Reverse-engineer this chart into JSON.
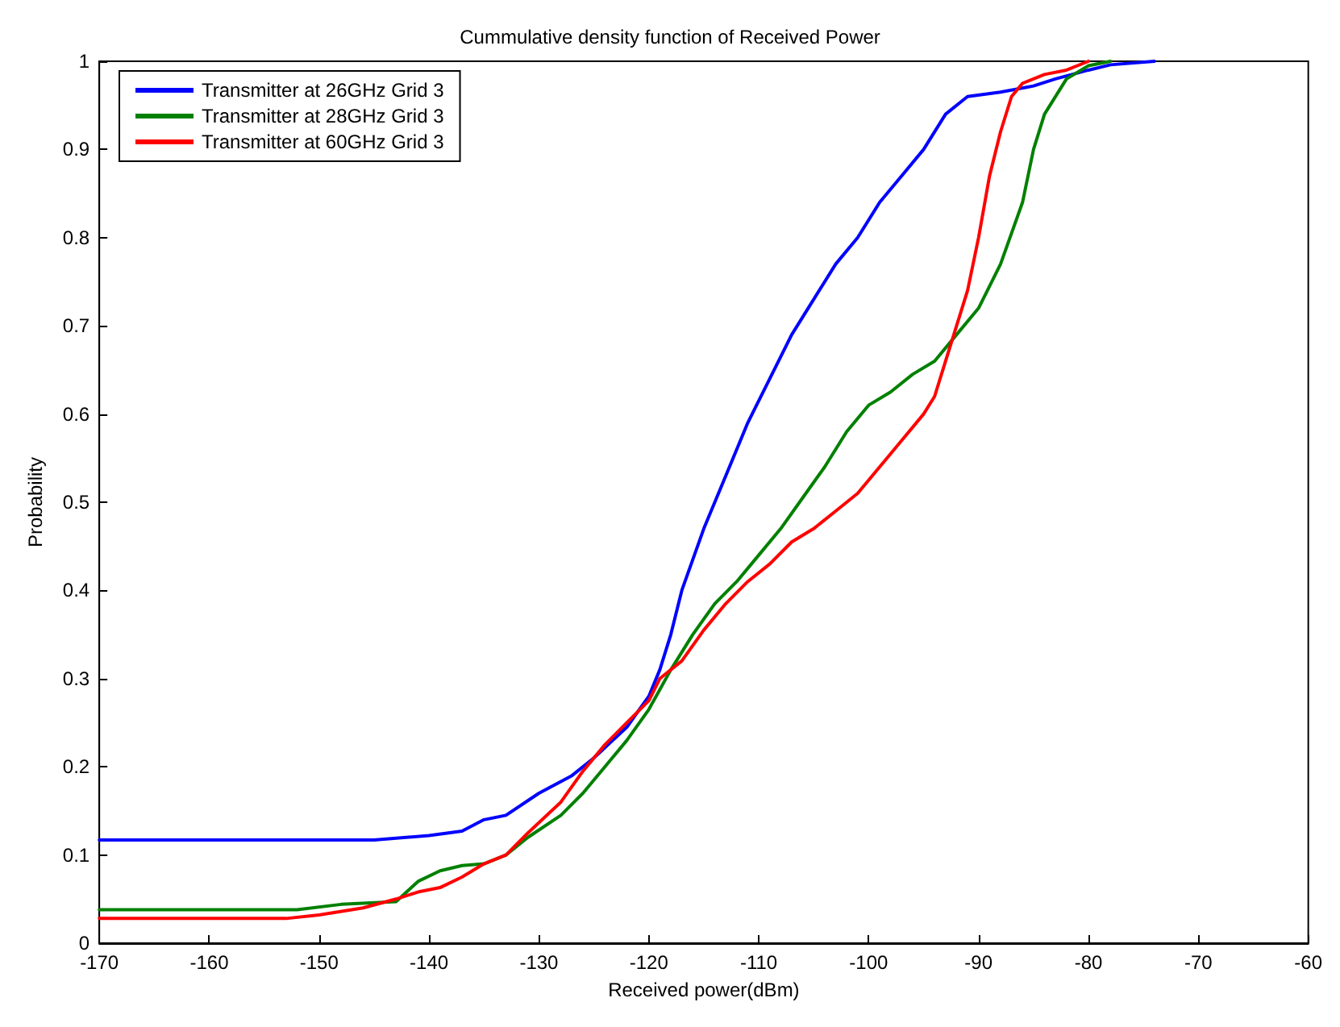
{
  "chart_data": {
    "type": "line",
    "title": "Cummulative density function of Received Power",
    "xlabel": "Received power(dBm)",
    "ylabel": "Probability",
    "xlim": [
      -170,
      -60
    ],
    "xticks": [
      -170,
      -160,
      -150,
      -140,
      -130,
      -120,
      -110,
      -100,
      -90,
      -80,
      -70,
      -60
    ],
    "ylim": [
      0,
      1
    ],
    "yticks": [
      0,
      0.1,
      0.2,
      0.3,
      0.4,
      0.5,
      0.6,
      0.7,
      0.8,
      0.9,
      1
    ],
    "grid": false,
    "legend": "top left",
    "marker": "none",
    "line_style": "solid",
    "series": [
      {
        "name": "Transmitter at 26GHz Grid 3",
        "color": "#0000ff",
        "x": [
          -170,
          -145,
          -140,
          -137,
          -135,
          -133,
          -130,
          -127,
          -125,
          -122,
          -120,
          -119,
          -118,
          -117,
          -115,
          -113,
          -111,
          -109,
          -107,
          -105,
          -103,
          -101,
          -99,
          -97,
          -95,
          -93,
          -91,
          -88,
          -85,
          -83,
          -80,
          -78,
          -74
        ],
        "values": [
          0.117,
          0.117,
          0.122,
          0.127,
          0.14,
          0.145,
          0.17,
          0.19,
          0.21,
          0.245,
          0.28,
          0.31,
          0.35,
          0.4,
          0.47,
          0.53,
          0.59,
          0.64,
          0.69,
          0.73,
          0.77,
          0.8,
          0.84,
          0.87,
          0.9,
          0.94,
          0.96,
          0.965,
          0.972,
          0.98,
          0.99,
          0.996,
          1.0
        ]
      },
      {
        "name": "Transmitter at 28GHz Grid 3",
        "color": "#008000",
        "x": [
          -170,
          -152,
          -148,
          -143,
          -141,
          -139,
          -137,
          -135,
          -133,
          -131,
          -128,
          -126,
          -124,
          -122,
          -120,
          -118,
          -116,
          -114,
          -112,
          -110,
          -108,
          -106,
          -104,
          -102,
          -100,
          -98,
          -96,
          -94,
          -92,
          -90,
          -88,
          -86,
          -85,
          -84,
          -82,
          -80,
          -78
        ],
        "values": [
          0.038,
          0.038,
          0.044,
          0.047,
          0.07,
          0.082,
          0.088,
          0.09,
          0.1,
          0.12,
          0.145,
          0.17,
          0.2,
          0.23,
          0.265,
          0.31,
          0.35,
          0.385,
          0.41,
          0.44,
          0.47,
          0.505,
          0.54,
          0.58,
          0.61,
          0.625,
          0.645,
          0.66,
          0.69,
          0.72,
          0.77,
          0.84,
          0.9,
          0.94,
          0.98,
          0.995,
          1.0
        ]
      },
      {
        "name": "Transmitter at 60GHz Grid 3",
        "color": "#ff0000",
        "x": [
          -170,
          -153,
          -150,
          -146,
          -143,
          -141,
          -139,
          -137,
          -135,
          -133,
          -131,
          -128,
          -126,
          -124,
          -122,
          -120,
          -119,
          -117,
          -115,
          -113,
          -111,
          -109,
          -107,
          -105,
          -103,
          -101,
          -99,
          -97,
          -95,
          -94,
          -93,
          -92,
          -91,
          -90,
          -89,
          -88,
          -87,
          -86,
          -84,
          -82,
          -80
        ],
        "values": [
          0.028,
          0.028,
          0.032,
          0.04,
          0.05,
          0.058,
          0.063,
          0.075,
          0.09,
          0.1,
          0.125,
          0.16,
          0.195,
          0.225,
          0.25,
          0.275,
          0.3,
          0.32,
          0.355,
          0.385,
          0.41,
          0.43,
          0.455,
          0.47,
          0.49,
          0.51,
          0.54,
          0.57,
          0.6,
          0.62,
          0.66,
          0.7,
          0.74,
          0.8,
          0.87,
          0.92,
          0.96,
          0.975,
          0.985,
          0.99,
          1.0
        ]
      }
    ]
  }
}
